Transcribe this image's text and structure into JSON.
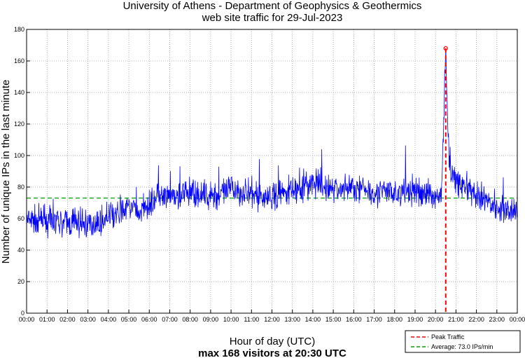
{
  "chart_data": {
    "type": "line",
    "title": "University of Athens - Department of Geophysics & Geothermics",
    "subtitle": "web site traffic for 29-Jul-2023",
    "xlabel": "Hour of day (UTC)",
    "caption": "max 168 visitors at 20:30 UTC",
    "ylabel": "Number of unique IPs in the last minute",
    "ylim": [
      0,
      180
    ],
    "yticks": [
      0,
      20,
      40,
      60,
      80,
      100,
      120,
      140,
      160,
      180
    ],
    "xlim_hours": [
      0,
      24
    ],
    "xtick_labels": [
      "00:00",
      "01:00",
      "02:00",
      "03:00",
      "04:00",
      "05:00",
      "06:00",
      "07:00",
      "08:00",
      "09:00",
      "10:00",
      "11:00",
      "12:00",
      "13:00",
      "14:00",
      "15:00",
      "16:00",
      "17:00",
      "18:00",
      "19:00",
      "20:00",
      "21:00",
      "22:00",
      "23:00",
      "00:00"
    ],
    "grid": true,
    "series": [
      {
        "name": "Traffic",
        "color": "#0000ff",
        "x_hours": [
          0,
          0.5,
          1,
          1.5,
          2,
          2.5,
          3,
          3.5,
          4,
          4.5,
          5,
          5.5,
          6,
          6.5,
          7,
          7.5,
          8,
          8.5,
          9,
          9.5,
          10,
          10.5,
          11,
          11.5,
          12,
          12.5,
          13,
          13.5,
          14,
          14.5,
          15,
          15.5,
          16,
          16.5,
          17,
          17.5,
          18,
          18.5,
          19,
          19.5,
          20,
          20.3,
          20.5,
          20.6,
          20.75,
          21,
          21.5,
          22,
          22.5,
          23,
          23.5,
          24
        ],
        "values": [
          58,
          59,
          58,
          57,
          57,
          58,
          56,
          57,
          61,
          63,
          68,
          63,
          70,
          73,
          73,
          74,
          77,
          75,
          74,
          75,
          79,
          77,
          75,
          74,
          73,
          76,
          79,
          80,
          82,
          80,
          79,
          79,
          80,
          79,
          77,
          77,
          76,
          77,
          77,
          76,
          75,
          75,
          168,
          115,
          92,
          84,
          80,
          73,
          72,
          68,
          66,
          64
        ]
      }
    ],
    "peak": {
      "label": "Peak Traffic",
      "hour": 20.5,
      "value": 168,
      "color": "#ff0000"
    },
    "average": {
      "label": "Average: 73.0 IPs/min",
      "value": 73.0,
      "color": "#00a000"
    },
    "legend_placement": "bottom-right"
  }
}
